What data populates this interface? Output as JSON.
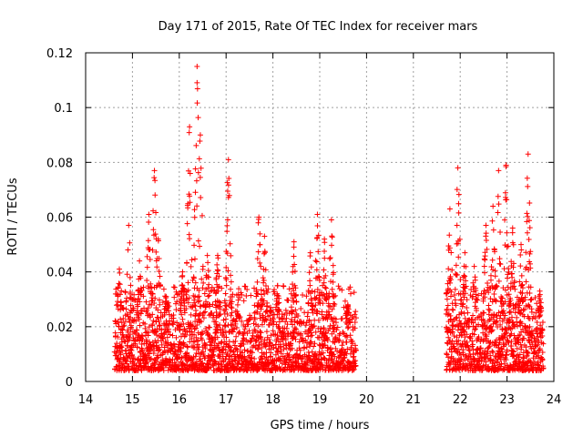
{
  "chart_data": {
    "type": "scatter",
    "title": "Day 171 of 2015, Rate Of TEC Index for receiver mars",
    "xlabel": "GPS time / hours",
    "ylabel": "ROTI / TECUs",
    "xlim": [
      14,
      24
    ],
    "ylim": [
      0,
      0.12
    ],
    "x_ticks": [
      "14",
      "15",
      "16",
      "17",
      "18",
      "19",
      "20",
      "21",
      "22",
      "23",
      "24"
    ],
    "y_ticks": [
      "0",
      "0.02",
      "0.04",
      "0.06",
      "0.08",
      "0.1",
      "0.12"
    ],
    "grid": true,
    "marker": "+",
    "point_color": "#ff0000",
    "series": [
      {
        "name": "ROTI",
        "segments": [
          {
            "x_start": 14.62,
            "x_end": 19.78
          },
          {
            "x_start": 21.7,
            "x_end": 23.78
          }
        ],
        "peaks": [
          {
            "x": 14.72,
            "y": 0.041
          },
          {
            "x": 14.92,
            "y": 0.057
          },
          {
            "x": 15.15,
            "y": 0.044
          },
          {
            "x": 15.35,
            "y": 0.061
          },
          {
            "x": 15.47,
            "y": 0.077
          },
          {
            "x": 15.55,
            "y": 0.052
          },
          {
            "x": 15.72,
            "y": 0.031
          },
          {
            "x": 16.07,
            "y": 0.04
          },
          {
            "x": 16.22,
            "y": 0.093
          },
          {
            "x": 16.38,
            "y": 0.115
          },
          {
            "x": 16.45,
            "y": 0.09
          },
          {
            "x": 16.6,
            "y": 0.046
          },
          {
            "x": 16.82,
            "y": 0.046
          },
          {
            "x": 17.05,
            "y": 0.081
          },
          {
            "x": 17.2,
            "y": 0.021
          },
          {
            "x": 17.7,
            "y": 0.06
          },
          {
            "x": 17.82,
            "y": 0.053
          },
          {
            "x": 17.95,
            "y": 0.027
          },
          {
            "x": 18.1,
            "y": 0.035
          },
          {
            "x": 18.45,
            "y": 0.051
          },
          {
            "x": 18.8,
            "y": 0.047
          },
          {
            "x": 18.95,
            "y": 0.061
          },
          {
            "x": 19.1,
            "y": 0.052
          },
          {
            "x": 19.25,
            "y": 0.059
          },
          {
            "x": 19.6,
            "y": 0.028
          },
          {
            "x": 21.78,
            "y": 0.063
          },
          {
            "x": 21.95,
            "y": 0.078
          },
          {
            "x": 22.1,
            "y": 0.047
          },
          {
            "x": 22.3,
            "y": 0.042
          },
          {
            "x": 22.55,
            "y": 0.057
          },
          {
            "x": 22.7,
            "y": 0.064
          },
          {
            "x": 22.82,
            "y": 0.077
          },
          {
            "x": 22.98,
            "y": 0.079
          },
          {
            "x": 23.12,
            "y": 0.056
          },
          {
            "x": 23.3,
            "y": 0.05
          },
          {
            "x": 23.45,
            "y": 0.083
          },
          {
            "x": 23.7,
            "y": 0.033
          }
        ],
        "baseline_range": [
          0.004,
          0.025
        ]
      }
    ]
  }
}
